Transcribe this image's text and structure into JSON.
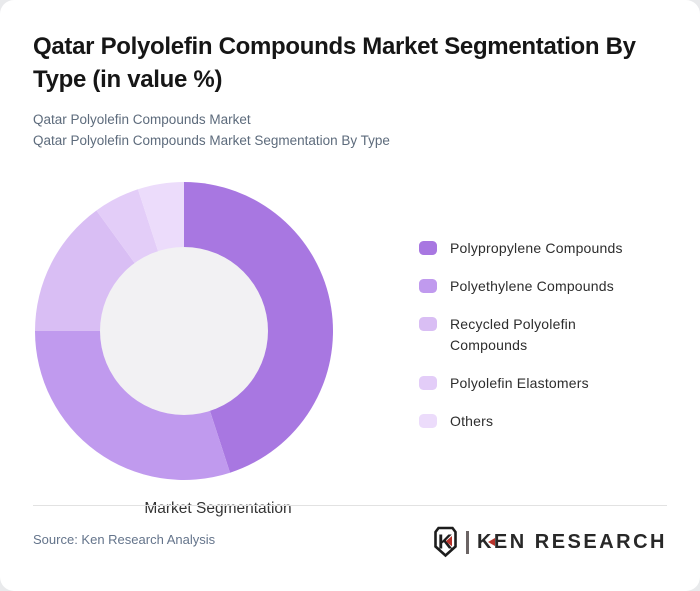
{
  "header": {
    "title": "Qatar Polyolefin Compounds Market Segmentation By Type (in value %)",
    "subtitle_line1": "Qatar Polyolefin Compounds Market",
    "subtitle_line2": "Qatar Polyolefin Compounds Market Segmentation By Type"
  },
  "chart_data": {
    "type": "pie",
    "variant": "donut",
    "title": "Qatar Polyolefin Compounds Market Segmentation By Type (in value %)",
    "unit": "value %",
    "center_label": "Market Segmentation",
    "labels": [
      "Polypropylene Compounds",
      "Polyethylene Compounds",
      "Recycled Polyolefin Compounds",
      "Polyolefin Elastomers",
      "Others"
    ],
    "values": [
      45,
      30,
      15,
      5,
      5
    ],
    "colors": [
      "#a877e1",
      "#c09aee",
      "#d9bef4",
      "#e3cdf8",
      "#ecdcfb"
    ],
    "inner_circle_color": "#f2f1f3",
    "outer_radius_px": 149,
    "inner_radius_px": 84,
    "start_angle_deg": -90,
    "direction": "clockwise",
    "legend_position": "right",
    "grid": false
  },
  "footer": {
    "source": "Source: Ken Research Analysis",
    "logo": {
      "shield_letter": "K",
      "text": "KEN RESEARCH",
      "accent_color": "#b7332b",
      "outline_color": "#1d1d1d"
    }
  }
}
